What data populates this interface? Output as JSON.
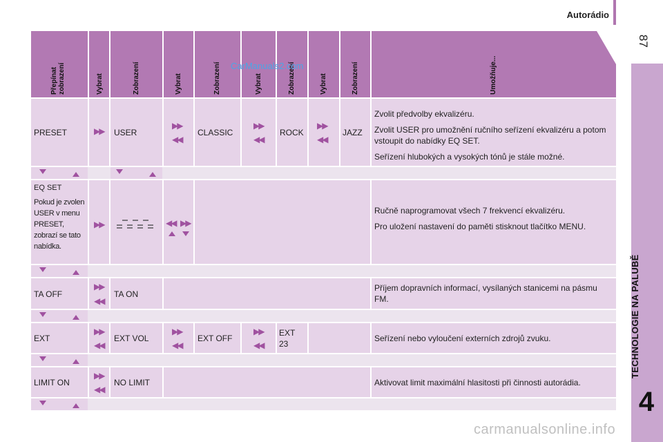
{
  "page": {
    "section_title": "Autorádio",
    "page_number": "87",
    "chapter_title": "TECHNOLOGIE NA PALUBĚ",
    "chapter_number": "4",
    "watermark": "carmanualsonline.info",
    "watermark2": "CarManuals2.com"
  },
  "table": {
    "headers": [
      "Přepínat zobrazení",
      "Vybrat",
      "Zobrazení",
      "Vybrat",
      "Zobrazení",
      "Vybrat",
      "Zobrazení",
      "Vybrat",
      "Zobrazení",
      "Umožňuje..."
    ],
    "header_line1": "Přepínat",
    "header_line2": "zobrazení",
    "rows": [
      {
        "c1": "PRESET",
        "c3": "USER",
        "c5": "CLASSIC",
        "c7": "ROCK",
        "c9": "JAZZ",
        "desc": [
          "Zvolit předvolby ekvalizéru.",
          "Zvolit USER pro umožnění ručního seřízení ekvalizéru a potom vstoupit do nabídky EQ SET.",
          "Seřízení hlubokých a vysokých tónů je stále možné."
        ]
      },
      {
        "c1_title": "EQ SET",
        "c1_note": "Pokud je zvolen USER v menu PRESET, zobrazí se tato nabídka.",
        "desc": [
          "Ručně naprogramovat všech 7 frekvencí ekvalizéru.",
          "Pro uložení nastavení do paměti stisknout tlačítko MENU."
        ]
      },
      {
        "c1": "TA OFF",
        "c3": "TA ON",
        "desc": [
          "Příjem dopravních informací, vysílaných stanicemi na pásmu FM."
        ]
      },
      {
        "c1": "EXT",
        "c3": "EXT VOL",
        "c5": "EXT OFF",
        "c7": "EXT 23",
        "desc": [
          "Seřízení nebo vyloučení externích zdrojů zvuku."
        ]
      },
      {
        "c1": "LIMIT ON",
        "c3": "NO LIMIT",
        "desc": [
          "Aktivovat limit maximální hlasitosti při činnosti autorádia."
        ]
      }
    ]
  }
}
